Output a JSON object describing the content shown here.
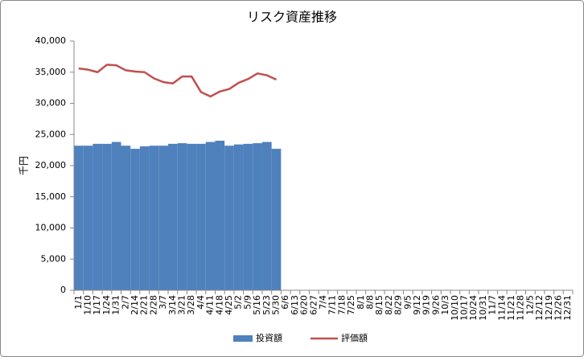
{
  "chart_data": {
    "type": "bar-line",
    "title": "リスク資産推移",
    "y_label": "千円",
    "categories": [
      "1/1",
      "1/10",
      "1/17",
      "1/24",
      "1/31",
      "2/7",
      "2/14",
      "2/21",
      "2/28",
      "3/7",
      "3/14",
      "3/21",
      "3/28",
      "4/4",
      "4/11",
      "4/18",
      "4/25",
      "5/2",
      "5/9",
      "5/16",
      "5/23",
      "5/30",
      "6/6",
      "6/13",
      "6/20",
      "6/27",
      "7/4",
      "7/11",
      "7/18",
      "7/25",
      "8/1",
      "8/8",
      "8/15",
      "8/22",
      "8/29",
      "9/5",
      "9/12",
      "9/19",
      "9/26",
      "10/3",
      "10/10",
      "10/17",
      "10/24",
      "10/31",
      "11/7",
      "11/14",
      "11/21",
      "11/28",
      "12/5",
      "12/12",
      "12/19",
      "12/26",
      "12/31"
    ],
    "series": [
      {
        "name": "投資額",
        "type": "bar",
        "color": "#4f81bd",
        "values": [
          23200,
          23200,
          23500,
          23500,
          23800,
          23200,
          22700,
          23100,
          23200,
          23200,
          23500,
          23600,
          23500,
          23500,
          23800,
          24000,
          23200,
          23400,
          23500,
          23600,
          23800,
          22700,
          null,
          null,
          null,
          null,
          null,
          null,
          null,
          null,
          null,
          null,
          null,
          null,
          null,
          null,
          null,
          null,
          null,
          null,
          null,
          null,
          null,
          null,
          null,
          null,
          null,
          null,
          null,
          null,
          null,
          null,
          null
        ]
      },
      {
        "name": "評価額",
        "type": "line",
        "color": "#c0504d",
        "values": [
          35600,
          35400,
          35000,
          36200,
          36100,
          35300,
          35100,
          35000,
          34000,
          33400,
          33200,
          34300,
          34300,
          31800,
          31100,
          31900,
          32300,
          33300,
          33900,
          34800,
          34500,
          33800,
          null,
          null,
          null,
          null,
          null,
          null,
          null,
          null,
          null,
          null,
          null,
          null,
          null,
          null,
          null,
          null,
          null,
          null,
          null,
          null,
          null,
          null,
          null,
          null,
          null,
          null,
          null,
          null,
          null,
          null,
          null
        ]
      }
    ],
    "ylim": [
      0,
      40000
    ],
    "yticks": [
      0,
      {
        "value": 5000,
        "label": "5,000"
      },
      {
        "value": 10000,
        "label": "10,000"
      },
      {
        "value": 15000,
        "label": "15,000"
      },
      {
        "value": 20000,
        "label": "20,000"
      },
      {
        "value": 25000,
        "label": "25,000"
      },
      {
        "value": 30000,
        "label": "30,000"
      },
      {
        "value": 35000,
        "label": "35,000"
      },
      {
        "value": 40000,
        "label": "40,000"
      }
    ],
    "legend": "bottom",
    "grid": false
  }
}
